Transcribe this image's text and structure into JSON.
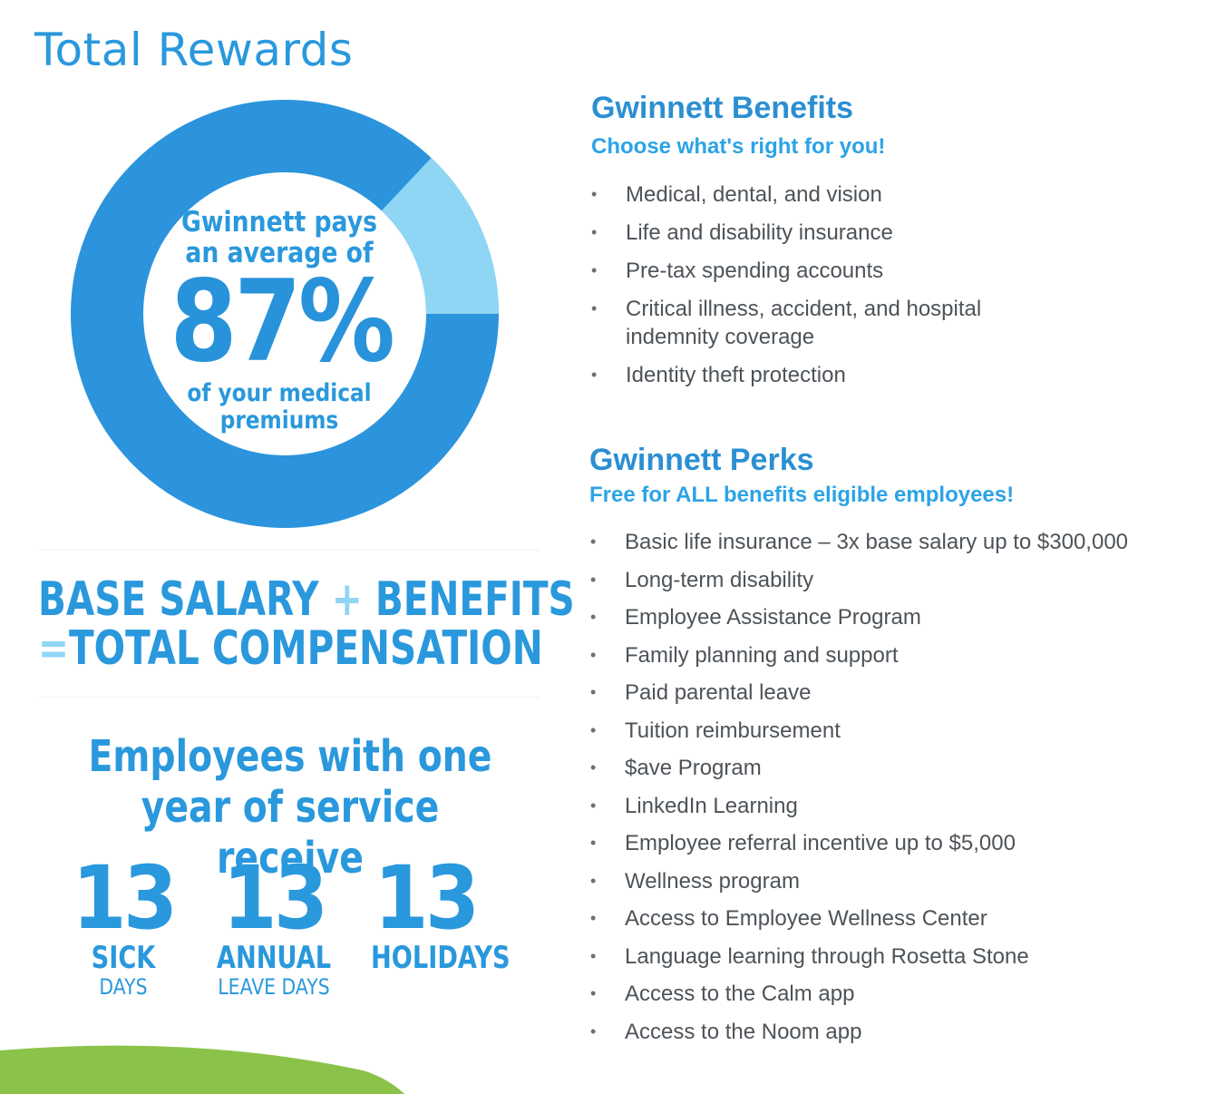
{
  "page": {
    "title": "Total Rewards"
  },
  "donut": {
    "line1": "Gwinnett pays",
    "line2": "an average of",
    "percent_label": "87%",
    "line3": "of your medical",
    "line4": "premiums",
    "value_fraction": 0.87,
    "colors": {
      "main": "#2b94dc",
      "remainder": "#8fd6f4"
    }
  },
  "equation": {
    "part1": "BASE SALARY",
    "plus": "+",
    "part2": "BENEFITS",
    "equals": "=",
    "result": "TOTAL COMPENSATION"
  },
  "service": {
    "heading_line1": "Employees with one",
    "heading_line2": "year of service receive",
    "stats": [
      {
        "number": "13",
        "label": "SICK",
        "sub": "DAYS"
      },
      {
        "number": "13",
        "label": "ANNUAL",
        "sub": "LEAVE DAYS"
      },
      {
        "number": "13",
        "label": "HOLIDAYS",
        "sub": ""
      }
    ]
  },
  "benefits": {
    "title": "Gwinnett Benefits",
    "subtitle": "Choose what's right for you!",
    "bullet": "•",
    "items": [
      "Medical, dental, and vision",
      "Life and disability insurance",
      "Pre-tax spending accounts",
      "Critical illness, accident, and hospital indemnity coverage",
      "Identity theft protection"
    ]
  },
  "perks": {
    "title": "Gwinnett Perks",
    "subtitle": "Free for ALL benefits eligible employees!",
    "bullet": "•",
    "items": [
      "Basic life insurance – 3x base salary up to $300,000",
      "Long-term disability",
      "Employee Assistance Program",
      "Family planning and support",
      "Paid parental leave",
      "Tuition reimbursement",
      "$ave Program",
      "LinkedIn Learning",
      "Employee referral incentive up to $5,000",
      "Wellness program",
      "Access to Employee Wellness Center",
      "Language learning through Rosetta Stone",
      "Access to the Calm app",
      "Access to the Noom app"
    ]
  },
  "colors": {
    "brand_blue": "#2a98dc",
    "light_blue": "#8fd6f4",
    "grass_green": "#8bc34a"
  }
}
